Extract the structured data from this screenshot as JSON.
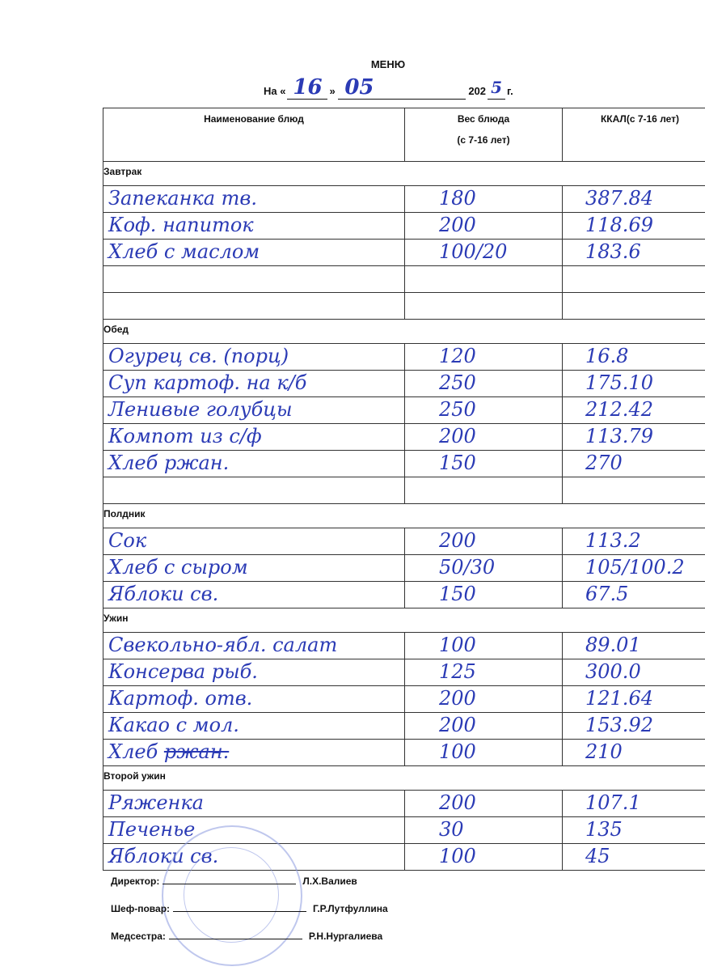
{
  "header": {
    "title": "МЕНЮ",
    "prefix": "На «",
    "day": "16",
    "mid": "»",
    "month": "05",
    "year_prefix": "202",
    "year_digit": "5",
    "suffix": "г."
  },
  "columns": {
    "name": "Наименование блюд",
    "weight_line1": "Вес блюда",
    "weight_line2": "(с 7-16 лет)",
    "kcal": "ККАЛ(с 7-16 лет)"
  },
  "sections": [
    {
      "title": "Завтрак",
      "items": [
        {
          "name": "Запеканка тв.",
          "weight": "180",
          "kcal": "387.84"
        },
        {
          "name": "Коф. напиток",
          "weight": "200",
          "kcal": "118.69"
        },
        {
          "name": "Хлеб с маслом",
          "weight": "100/20",
          "kcal": "183.6"
        },
        {
          "name": "",
          "weight": "",
          "kcal": ""
        },
        {
          "name": "",
          "weight": "",
          "kcal": ""
        }
      ]
    },
    {
      "title": "Обед",
      "items": [
        {
          "name": "Огурец св. (порц)",
          "weight": "120",
          "kcal": "16.8"
        },
        {
          "name": "Суп картоф. на к/б",
          "weight": "250",
          "kcal": "175.10"
        },
        {
          "name": "Ленивые голубцы",
          "weight": "250",
          "kcal": "212.42"
        },
        {
          "name": "Компот из с/ф",
          "weight": "200",
          "kcal": "113.79"
        },
        {
          "name": "Хлеб ржан.",
          "weight": "150",
          "kcal": "270"
        },
        {
          "name": "",
          "weight": "",
          "kcal": ""
        }
      ]
    },
    {
      "title": "Полдник",
      "items": [
        {
          "name": "Сок",
          "weight": "200",
          "kcal": "113.2"
        },
        {
          "name": "Хлеб с сыром",
          "weight": "50/30",
          "kcal": "105/100.2"
        },
        {
          "name": "Яблоки св.",
          "weight": "150",
          "kcal": "67.5"
        }
      ]
    },
    {
      "title": "Ужин",
      "items": [
        {
          "name": "Свекольно-ябл. салат",
          "weight": "100",
          "kcal": "89.01"
        },
        {
          "name": "Консерва рыб.",
          "weight": "125",
          "kcal": "300.0"
        },
        {
          "name": "Картоф. отв.",
          "weight": "200",
          "kcal": "121.64"
        },
        {
          "name": "Какао с мол.",
          "weight": "200",
          "kcal": "153.92"
        },
        {
          "name": "Хлеб",
          "struck": "ржан.",
          "weight": "100",
          "kcal": "210"
        }
      ]
    },
    {
      "title": "Второй ужин",
      "items": [
        {
          "name": "Ряженка",
          "weight": "200",
          "kcal": "107.1"
        },
        {
          "name": "Печенье",
          "weight": "30",
          "kcal": "135"
        },
        {
          "name": "Яблоки св.",
          "weight": "100",
          "kcal": "45"
        }
      ]
    }
  ],
  "signatures": [
    {
      "role": "Директор:",
      "name": "Л.Х.Валиев"
    },
    {
      "role": "Шеф-повар:",
      "name": "Г.Р.Лутфуллина"
    },
    {
      "role": "Медсестра:",
      "name": "Р.Н.Нургалиева"
    }
  ],
  "colors": {
    "ink": "#2b3bb5",
    "stamp": "#8c9be0"
  }
}
